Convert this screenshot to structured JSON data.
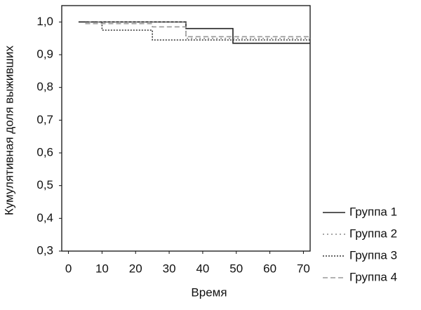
{
  "chart_data": {
    "type": "line",
    "x_label": "Время",
    "y_label": "Кумулятивная доля выживших",
    "xlim": [
      -2,
      72
    ],
    "xticks": [
      0,
      10,
      20,
      30,
      40,
      50,
      60,
      70
    ],
    "ylim": [
      0.3,
      1.05
    ],
    "yticks": [
      {
        "value": 0.3,
        "label": "0,3"
      },
      {
        "value": 0.4,
        "label": "0,4"
      },
      {
        "value": 0.5,
        "label": "0,5"
      },
      {
        "value": 0.6,
        "label": "0,6"
      },
      {
        "value": 0.7,
        "label": "0,7"
      },
      {
        "value": 0.8,
        "label": "0,8"
      },
      {
        "value": 0.9,
        "label": "0,9"
      },
      {
        "value": 1.0,
        "label": "1,0"
      }
    ],
    "legend": "right",
    "series": [
      {
        "name": "Группа 1",
        "color": "#222222",
        "dash": "none",
        "x": [
          3,
          35,
          35,
          49,
          49,
          72
        ],
        "values": [
          1.0,
          1.0,
          0.98,
          0.98,
          0.935,
          0.935
        ]
      },
      {
        "name": "Группа 2",
        "color": "#888888",
        "dash": "2,4",
        "x": [
          5,
          35,
          35,
          72
        ],
        "values": [
          1.0,
          1.0,
          0.95,
          0.95
        ]
      },
      {
        "name": "Группа 3",
        "color": "#333333",
        "dash": "2,2",
        "x": [
          5,
          10,
          10,
          25,
          25,
          72
        ],
        "values": [
          1.0,
          1.0,
          0.975,
          0.975,
          0.945,
          0.945
        ]
      },
      {
        "name": "Группа 4",
        "color": "#999999",
        "dash": "7,4",
        "x": [
          5,
          25,
          25,
          35,
          35,
          72
        ],
        "values": [
          0.995,
          0.995,
          0.985,
          0.985,
          0.955,
          0.955
        ]
      }
    ]
  }
}
